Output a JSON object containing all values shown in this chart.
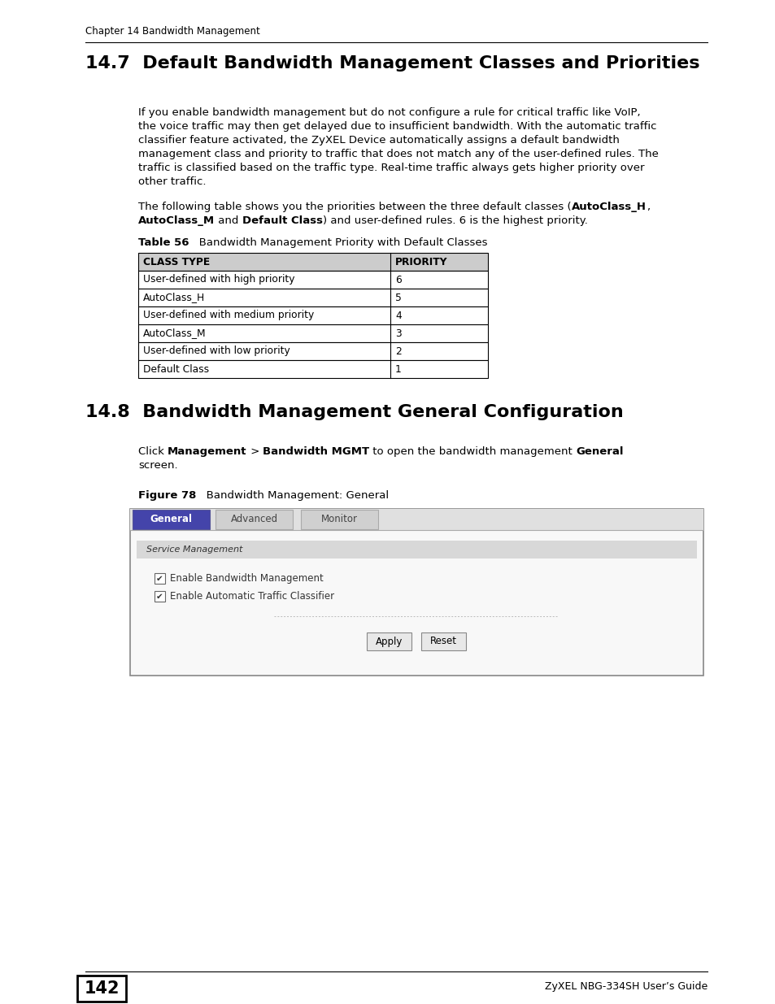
{
  "page_width": 9.54,
  "page_height": 12.35,
  "bg_color": "#ffffff",
  "header_text": "Chapter 14 Bandwidth Management",
  "section1_title": "14.7  Default Bandwidth Management Classes and Priorities",
  "table_caption_bold": "Table 56",
  "table_caption_rest": "   Bandwidth Management Priority with Default Classes",
  "table_headers": [
    "CLASS TYPE",
    "PRIORITY"
  ],
  "table_rows": [
    [
      "User-defined with high priority",
      "6"
    ],
    [
      "AutoClass_H",
      "5"
    ],
    [
      "User-defined with medium priority",
      "4"
    ],
    [
      "AutoClass_M",
      "3"
    ],
    [
      "User-defined with low priority",
      "2"
    ],
    [
      "Default Class",
      "1"
    ]
  ],
  "section2_title": "14.8  Bandwidth Management General Configuration",
  "fig_caption_bold": "Figure 78",
  "fig_caption_rest": "   Bandwidth Management: General",
  "tab_labels": [
    "General",
    "Advanced",
    "Monitor"
  ],
  "service_mgmt_label": "Service Management",
  "checkbox1": "Enable Bandwidth Management",
  "checkbox2": "Enable Automatic Traffic Classifier",
  "btn_apply": "Apply",
  "btn_reset": "Reset",
  "footer_page": "142",
  "footer_right": "ZyXEL NBG-334SH User’s Guide",
  "tab_active_color": "#4444aa",
  "table_header_bg": "#cccccc",
  "table_border": "#000000",
  "service_mgmt_bg": "#d8d8d8",
  "para1_lines": [
    "If you enable bandwidth management but do not configure a rule for critical traffic like VoIP,",
    "the voice traffic may then get delayed due to insufficient bandwidth. With the automatic traffic",
    "classifier feature activated, the ZyXEL Device automatically assigns a default bandwidth",
    "management class and priority to traffic that does not match any of the user-defined rules. The",
    "traffic is classified based on the traffic type. Real-time traffic always gets higher priority over",
    "other traffic."
  ],
  "para2_line1": "The following table shows you the priorities between the three default classes (AutoClass_H,",
  "para2_line2": "AutoClass_M and Default Class) and user-defined rules. 6 is the highest priority.",
  "para3_line1": "Click Management > Bandwidth MGMT to open the bandwidth management General",
  "para3_line2": "screen."
}
